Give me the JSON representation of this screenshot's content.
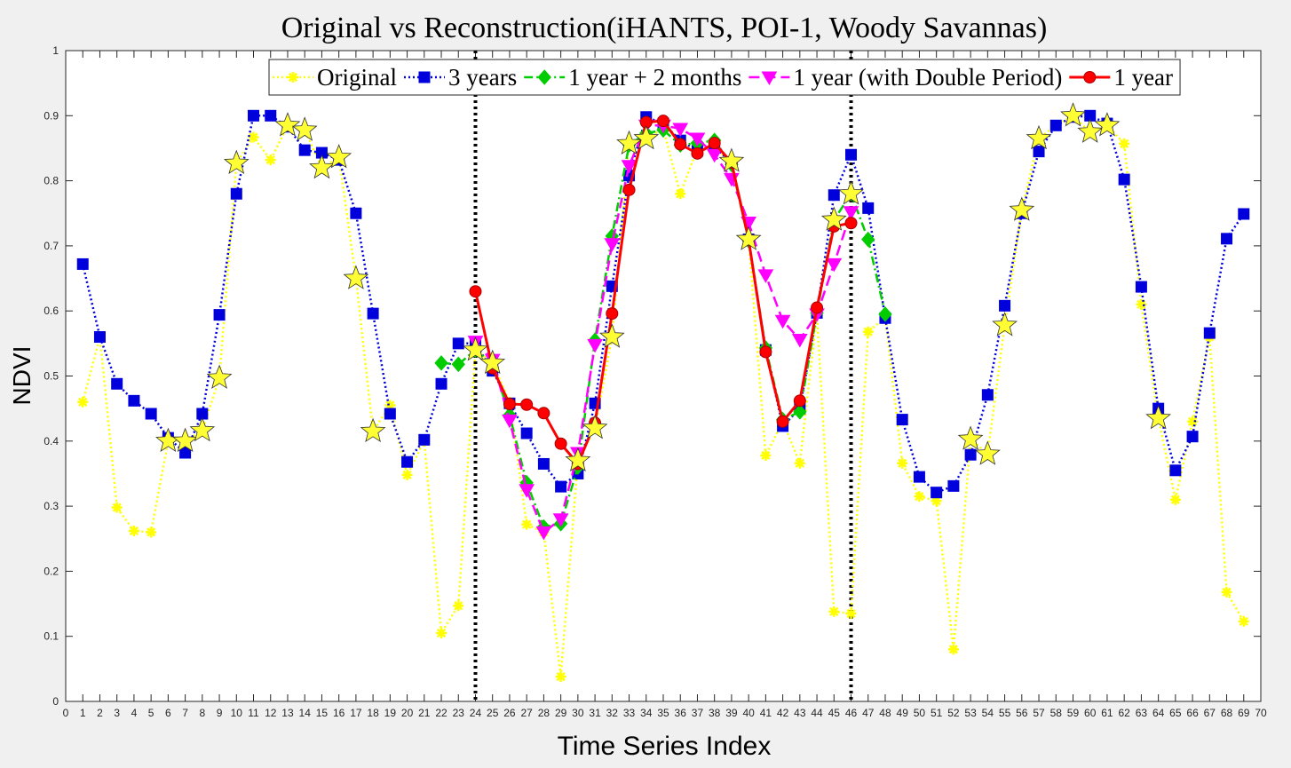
{
  "chart_data": {
    "type": "line",
    "title": "Original vs Reconstruction(iHANTS, POI-1, Woody Savannas)",
    "xlabel": "Time Series Index",
    "ylabel": "NDVI",
    "xlim": [
      0,
      70
    ],
    "ylim": [
      0,
      1
    ],
    "x_ticks": [
      0,
      1,
      2,
      3,
      4,
      5,
      6,
      7,
      8,
      9,
      10,
      11,
      12,
      13,
      14,
      15,
      16,
      17,
      18,
      19,
      20,
      21,
      22,
      23,
      24,
      25,
      26,
      27,
      28,
      29,
      30,
      31,
      32,
      33,
      34,
      35,
      36,
      37,
      38,
      39,
      40,
      41,
      42,
      43,
      44,
      45,
      46,
      47,
      48,
      49,
      50,
      51,
      52,
      53,
      54,
      55,
      56,
      57,
      58,
      59,
      60,
      61,
      62,
      63,
      64,
      65,
      66,
      67,
      68,
      69,
      70
    ],
    "y_ticks": [
      0,
      0.1,
      0.2,
      0.3,
      0.4,
      0.5,
      0.6,
      0.7,
      0.8,
      0.9,
      1
    ],
    "grid": false,
    "legend_position": "top-right",
    "vertical_lines": [
      24,
      46
    ],
    "series": [
      {
        "name": "Original",
        "color": "#ffff00",
        "marker": "asterisk",
        "line": "dotted",
        "x": [
          1,
          2,
          3,
          4,
          5,
          6,
          7,
          8,
          9,
          10,
          11,
          12,
          13,
          14,
          15,
          16,
          17,
          18,
          19,
          20,
          21,
          22,
          23,
          24,
          25,
          26,
          27,
          28,
          29,
          30,
          31,
          32,
          33,
          34,
          35,
          36,
          37,
          38,
          39,
          40,
          41,
          42,
          43,
          44,
          45,
          46,
          47,
          48,
          49,
          50,
          51,
          52,
          53,
          54,
          55,
          56,
          57,
          58,
          59,
          60,
          61,
          62,
          63,
          64,
          65,
          66,
          67,
          68,
          69
        ],
        "values": [
          0.46,
          0.56,
          0.298,
          0.262,
          0.26,
          0.4,
          0.4,
          0.416,
          0.497,
          0.827,
          0.867,
          0.832,
          0.885,
          0.878,
          0.82,
          0.836,
          0.65,
          0.415,
          0.455,
          0.348,
          0.4,
          0.105,
          0.147,
          0.54,
          0.52,
          0.46,
          0.272,
          0.26,
          0.038,
          0.37,
          0.42,
          0.56,
          0.857,
          0.865,
          0.88,
          0.78,
          0.85,
          0.85,
          0.83,
          0.71,
          0.378,
          0.43,
          0.366,
          0.595,
          0.138,
          0.135,
          0.568,
          0.59,
          0.366,
          0.315,
          0.308,
          0.08,
          0.403,
          0.38,
          0.578,
          0.755,
          0.865,
          0.885,
          0.9,
          0.875,
          0.885,
          0.857,
          0.61,
          0.435,
          0.31,
          0.43,
          0.56,
          0.168,
          0.123
        ]
      },
      {
        "name": "3 years",
        "color": "#0000dd",
        "marker": "square",
        "line": "dotted",
        "x": [
          1,
          2,
          3,
          4,
          5,
          6,
          7,
          8,
          9,
          10,
          11,
          12,
          13,
          14,
          15,
          16,
          17,
          18,
          19,
          20,
          21,
          22,
          23,
          24,
          25,
          26,
          27,
          28,
          29,
          30,
          31,
          32,
          33,
          34,
          35,
          36,
          37,
          38,
          39,
          40,
          41,
          42,
          43,
          44,
          45,
          46,
          47,
          48,
          49,
          50,
          51,
          52,
          53,
          54,
          55,
          56,
          57,
          58,
          59,
          60,
          61,
          62,
          63,
          64,
          65,
          66,
          67,
          68,
          69
        ],
        "values": [
          0.672,
          0.56,
          0.488,
          0.462,
          0.442,
          0.405,
          0.382,
          0.442,
          0.594,
          0.78,
          0.9,
          0.9,
          0.883,
          0.847,
          0.843,
          0.832,
          0.75,
          0.596,
          0.442,
          0.368,
          0.402,
          0.488,
          0.55,
          0.55,
          0.508,
          0.458,
          0.412,
          0.365,
          0.33,
          0.35,
          0.458,
          0.638,
          0.808,
          0.898,
          0.888,
          0.862,
          0.846,
          0.852,
          0.828,
          0.71,
          0.54,
          0.423,
          0.45,
          0.597,
          0.778,
          0.84,
          0.758,
          0.589,
          0.433,
          0.345,
          0.321,
          0.331,
          0.379,
          0.471,
          0.608,
          0.75,
          0.845,
          0.885,
          0.898,
          0.9,
          0.888,
          0.802,
          0.637,
          0.45,
          0.355,
          0.407,
          0.566,
          0.711,
          0.749
        ]
      },
      {
        "name": "1 year + 2 months",
        "color": "#00cc00",
        "marker": "diamond",
        "line": "dashdot",
        "x": [
          22,
          23,
          24,
          25,
          26,
          27,
          28,
          29,
          30,
          31,
          32,
          33,
          34,
          35,
          36,
          37,
          38,
          39,
          40,
          41,
          42,
          43,
          44,
          45,
          46,
          47,
          48
        ],
        "values": [
          0.52,
          0.518,
          0.54,
          0.52,
          0.44,
          0.336,
          0.268,
          0.273,
          0.36,
          0.555,
          0.715,
          0.855,
          0.873,
          0.878,
          0.855,
          0.858,
          0.862,
          0.825,
          0.708,
          0.543,
          0.433,
          0.445,
          0.597,
          0.74,
          0.78,
          0.71,
          0.595
        ]
      },
      {
        "name": "1 year (with Double Period)",
        "color": "#ff00ff",
        "marker": "triangle-down",
        "line": "dashed",
        "x": [
          24,
          25,
          26,
          27,
          28,
          29,
          30,
          31,
          32,
          33,
          34,
          35,
          36,
          37,
          38,
          39,
          40,
          41,
          42,
          43,
          44,
          45,
          46
        ],
        "values": [
          0.553,
          0.525,
          0.432,
          0.325,
          0.26,
          0.28,
          0.382,
          0.548,
          0.703,
          0.823,
          0.885,
          0.885,
          0.88,
          0.865,
          0.84,
          0.803,
          0.736,
          0.655,
          0.585,
          0.556,
          0.595,
          0.672,
          0.752
        ]
      },
      {
        "name": "1 year",
        "color": "#ff0000",
        "marker": "circle",
        "line": "solid",
        "x": [
          24,
          25,
          26,
          27,
          28,
          29,
          30,
          31,
          32,
          33,
          34,
          35,
          36,
          37,
          38,
          39,
          40,
          41,
          42,
          43,
          44,
          45,
          46
        ],
        "values": [
          0.63,
          0.512,
          0.457,
          0.456,
          0.443,
          0.396,
          0.365,
          0.428,
          0.596,
          0.786,
          0.89,
          0.892,
          0.856,
          0.842,
          0.858,
          0.828,
          0.71,
          0.537,
          0.43,
          0.462,
          0.605,
          0.73,
          0.735
        ]
      }
    ],
    "flagged_points": {
      "marker": "star",
      "color": "#ffff33",
      "x": [
        6,
        7,
        8,
        9,
        10,
        13,
        14,
        15,
        16,
        17,
        18,
        24,
        25,
        30,
        31,
        32,
        33,
        34,
        39,
        40,
        45,
        46,
        53,
        54,
        55,
        56,
        57,
        59,
        60,
        61,
        64
      ],
      "values": [
        0.4,
        0.4,
        0.416,
        0.497,
        0.827,
        0.885,
        0.878,
        0.82,
        0.836,
        0.65,
        0.415,
        0.54,
        0.52,
        0.37,
        0.42,
        0.56,
        0.857,
        0.865,
        0.83,
        0.71,
        0.74,
        0.78,
        0.403,
        0.38,
        0.578,
        0.755,
        0.865,
        0.9,
        0.875,
        0.885,
        0.435
      ]
    }
  }
}
